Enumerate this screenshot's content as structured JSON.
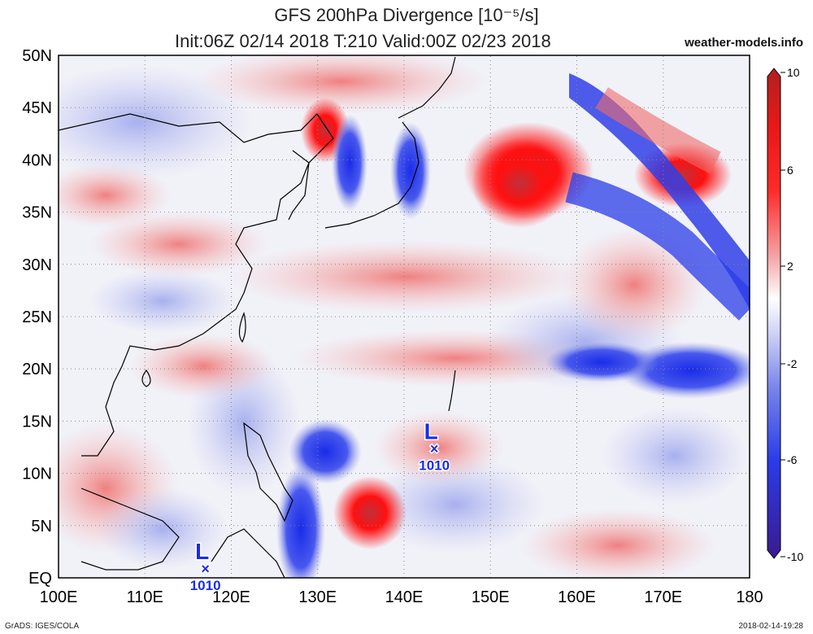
{
  "title": {
    "line1": "GFS 200hPa Divergence [10⁻⁵/s]",
    "line2": "Init:06Z 02/14 2018 T:210 Valid:00Z 02/23 2018",
    "site": "weather-models.info"
  },
  "axes": {
    "lat_labels": [
      "EQ",
      "5N",
      "10N",
      "15N",
      "20N",
      "25N",
      "30N",
      "35N",
      "40N",
      "45N",
      "50N"
    ],
    "lon_labels": [
      "100E",
      "110E",
      "120E",
      "130E",
      "140E",
      "150E",
      "160E",
      "170E",
      "180"
    ]
  },
  "colorbar": {
    "tick_labels": [
      "10",
      "6",
      "2",
      "-2",
      "-6",
      "-10"
    ],
    "colors": [
      "#f4c2c2",
      "#e06060",
      "#ff0000",
      "#c0303a",
      "#f0f0f8",
      "#9aa2e8",
      "#2a3ce8",
      "#2a1a9a"
    ]
  },
  "lows": [
    {
      "symbol": "L",
      "value": "1010",
      "lat": 12.5,
      "lon": 143.5
    },
    {
      "symbol": "L",
      "value": "1010",
      "lat": 1.0,
      "lon": 117.0
    }
  ],
  "footer": {
    "left": "GrADS: IGES/COLA",
    "right": "2018-02-14-19:28"
  }
}
